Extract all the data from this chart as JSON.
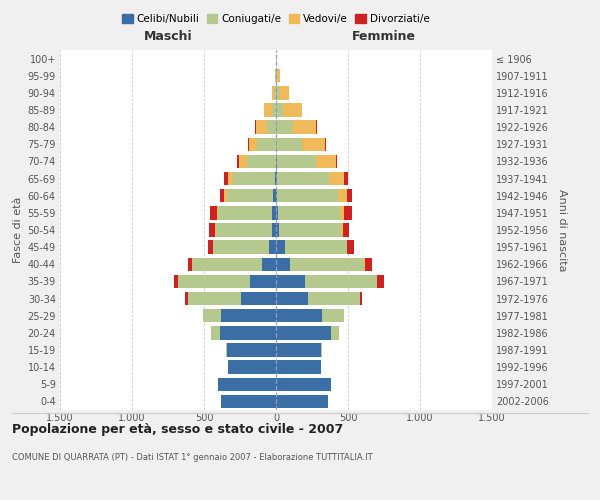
{
  "age_groups": [
    "0-4",
    "5-9",
    "10-14",
    "15-19",
    "20-24",
    "25-29",
    "30-34",
    "35-39",
    "40-44",
    "45-49",
    "50-54",
    "55-59",
    "60-64",
    "65-69",
    "70-74",
    "75-79",
    "80-84",
    "85-89",
    "90-94",
    "95-99",
    "100+"
  ],
  "birth_years": [
    "2002-2006",
    "1997-2001",
    "1992-1996",
    "1987-1991",
    "1982-1986",
    "1977-1981",
    "1972-1976",
    "1967-1971",
    "1962-1966",
    "1957-1961",
    "1952-1956",
    "1947-1951",
    "1942-1946",
    "1937-1941",
    "1932-1936",
    "1927-1931",
    "1922-1926",
    "1917-1921",
    "1912-1916",
    "1907-1911",
    "≤ 1906"
  ],
  "males": {
    "celibe": [
      380,
      400,
      330,
      340,
      390,
      380,
      240,
      180,
      100,
      50,
      30,
      30,
      20,
      10,
      0,
      0,
      0,
      0,
      0,
      0,
      0
    ],
    "coniugato": [
      0,
      0,
      0,
      10,
      60,
      130,
      370,
      500,
      480,
      390,
      390,
      370,
      320,
      290,
      200,
      130,
      60,
      30,
      15,
      5,
      0
    ],
    "vedovo": [
      0,
      0,
      0,
      0,
      0,
      0,
      0,
      0,
      0,
      0,
      5,
      10,
      20,
      30,
      60,
      60,
      80,
      50,
      15,
      5,
      0
    ],
    "divorziato": [
      0,
      0,
      0,
      0,
      0,
      0,
      20,
      30,
      30,
      30,
      40,
      50,
      30,
      30,
      10,
      5,
      5,
      0,
      0,
      0,
      0
    ]
  },
  "females": {
    "nubile": [
      360,
      380,
      310,
      310,
      380,
      320,
      220,
      200,
      100,
      60,
      20,
      15,
      10,
      10,
      5,
      0,
      0,
      0,
      0,
      0,
      0
    ],
    "coniugata": [
      0,
      0,
      0,
      10,
      60,
      150,
      360,
      500,
      510,
      430,
      430,
      430,
      420,
      360,
      270,
      180,
      120,
      50,
      20,
      5,
      0
    ],
    "vedova": [
      0,
      0,
      0,
      0,
      0,
      0,
      0,
      0,
      5,
      5,
      15,
      30,
      60,
      100,
      140,
      160,
      160,
      130,
      70,
      20,
      2
    ],
    "divorziata": [
      0,
      0,
      0,
      0,
      0,
      0,
      20,
      50,
      50,
      50,
      40,
      50,
      40,
      30,
      10,
      5,
      5,
      0,
      0,
      0,
      0
    ]
  },
  "color_celibe": "#3a6ea5",
  "color_coniugato": "#b5c98e",
  "color_vedovo": "#f0b959",
  "color_divorziato": "#cc2222",
  "title": "Popolazione per età, sesso e stato civile - 2007",
  "subtitle": "COMUNE DI QUARRATA (PT) - Dati ISTAT 1° gennaio 2007 - Elaborazione TUTTITALIA.IT",
  "xlabel_left": "Maschi",
  "xlabel_right": "Femmine",
  "ylabel_left": "Fasce di età",
  "ylabel_right": "Anni di nascita",
  "xlim": 1500,
  "xtick_labels": [
    "1.500",
    "1.000",
    "500",
    "0",
    "500",
    "1.000",
    "1.500"
  ],
  "bg_color": "#f0f0f0",
  "plot_bg_color": "#ffffff"
}
